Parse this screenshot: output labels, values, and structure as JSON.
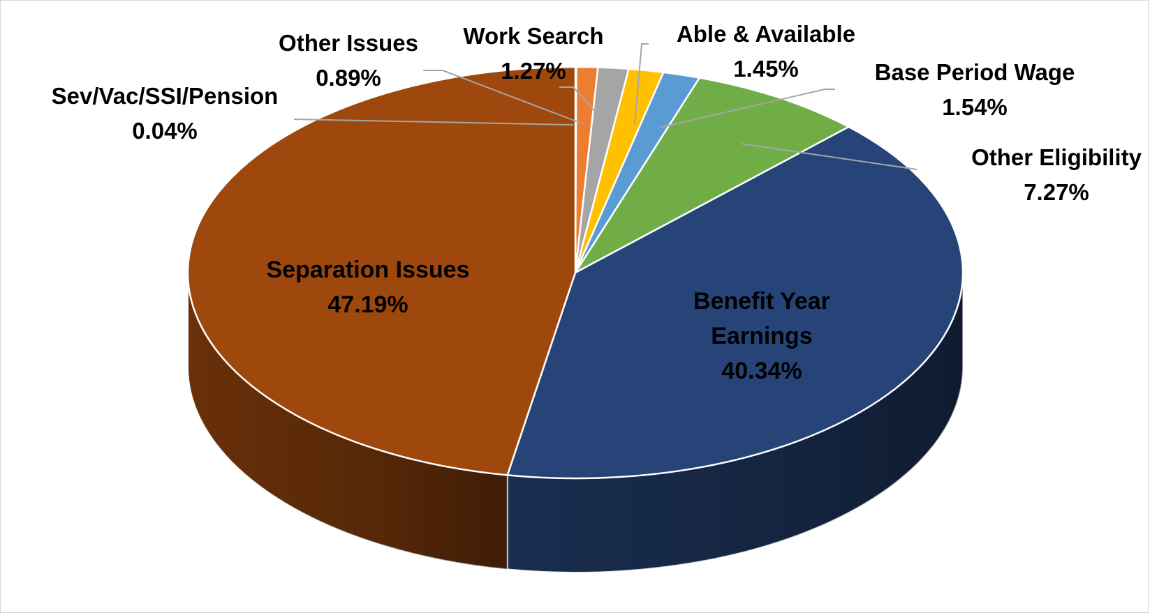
{
  "chart_data": {
    "type": "pie",
    "style": "3d",
    "slices": [
      {
        "label": "Sev/Vac/SSI/Pension",
        "pct_text": "0.04%",
        "value": 0.04,
        "color": "#7f7f7f"
      },
      {
        "label": "Other Issues",
        "pct_text": "0.89%",
        "value": 0.89,
        "color": "#ed7d31"
      },
      {
        "label": "Work Search",
        "pct_text": "1.27%",
        "value": 1.27,
        "color": "#a5a5a5"
      },
      {
        "label": "Able & Available",
        "pct_text": "1.45%",
        "value": 1.45,
        "color": "#ffc000"
      },
      {
        "label": "Base Period Wage",
        "pct_text": "1.54%",
        "value": 1.54,
        "color": "#5b9bd5"
      },
      {
        "label": "Other Eligibility",
        "pct_text": "7.27%",
        "value": 7.27,
        "color": "#70ad47"
      },
      {
        "label_lines": [
          "Benefit Year",
          "Earnings"
        ],
        "pct_text": "40.34%",
        "value": 40.34,
        "color": "#264478"
      },
      {
        "label": "Separation Issues",
        "pct_text": "47.19%",
        "value": 47.19,
        "color": "#9e480e"
      }
    ],
    "start_angle_deg": 0,
    "direction": "clockwise",
    "legend": "none",
    "leader_line_color": "#a6a6a6",
    "slice_border_color": "#ffffff"
  }
}
